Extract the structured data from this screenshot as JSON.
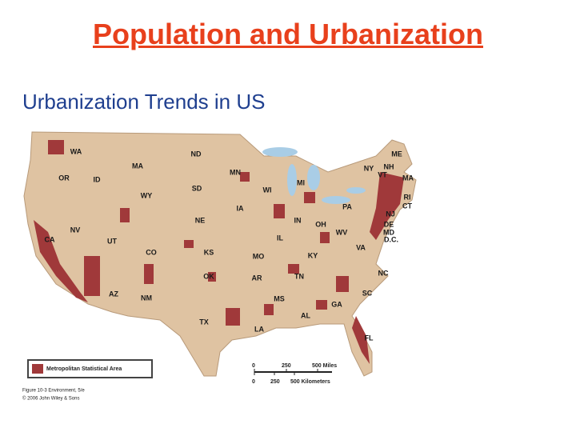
{
  "title": "Population and Urbanization",
  "subtitle": "Urbanization Trends in US",
  "map": {
    "state_labels": [
      "WA",
      "OR",
      "ID",
      "MA",
      "ND",
      "MN",
      "SD",
      "WY",
      "NE",
      "IA",
      "WI",
      "MI",
      "NV",
      "UT",
      "CO",
      "KS",
      "CA",
      "MO",
      "IL",
      "IN",
      "OH",
      "PA",
      "NY",
      "NH",
      "VT",
      "ME",
      "MA",
      "RI",
      "CT",
      "NJ",
      "DE",
      "MD",
      "D.C.",
      "WV",
      "VA",
      "KY",
      "TN",
      "NC",
      "SC",
      "GA",
      "AL",
      "MS",
      "AR",
      "LA",
      "OK",
      "TX",
      "NM",
      "AZ",
      "FL"
    ],
    "legend": {
      "label": "Metropolitan Statistical Area"
    },
    "scale": {
      "miles": [
        "0",
        "250",
        "500 Miles"
      ],
      "kilometers": [
        "0",
        "250",
        "500 Kilometers"
      ]
    }
  },
  "credit": [
    "Figure 10-3 Environment, 5/e",
    "© 2006 John Wiley & Sons"
  ]
}
